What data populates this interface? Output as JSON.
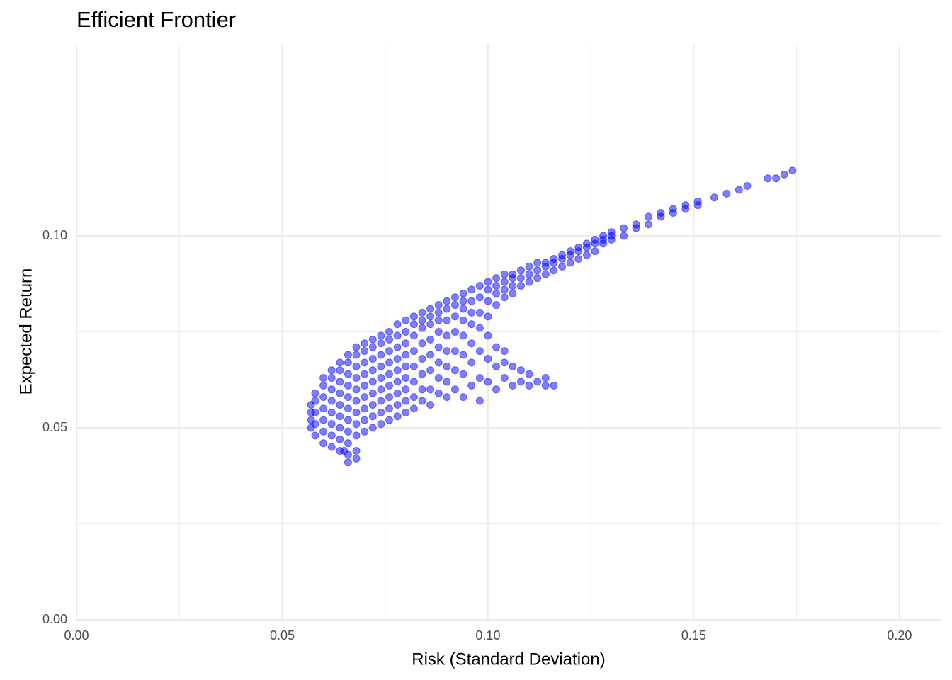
{
  "chart_data": {
    "type": "scatter",
    "title": "Efficient Frontier",
    "x_label": "Risk (Standard Deviation)",
    "y_label": "Expected Return",
    "color": "blue",
    "grid": true,
    "xlim": [
      0,
      0.21
    ],
    "ylim": [
      0,
      0.15
    ],
    "xticks": [
      {
        "value": 0,
        "label": "0.00"
      },
      {
        "value": 0.05,
        "label": "0.05"
      },
      {
        "value": 0.1,
        "label": "0.10"
      },
      {
        "value": 0.15,
        "label": "0.15"
      },
      {
        "value": 0.2,
        "label": "0.20"
      }
    ],
    "yticks": [
      {
        "value": 0,
        "label": "0.00"
      },
      {
        "value": 0.05,
        "label": "0.05"
      },
      {
        "value": 0.1,
        "label": "0.10"
      }
    ],
    "xminor": [
      0.025,
      0.075,
      0.125,
      0.175
    ],
    "yminor": [
      0.025,
      0.075,
      0.125
    ],
    "x": [
      0.057,
      0.057,
      0.057,
      0.057,
      0.058,
      0.058,
      0.058,
      0.058,
      0.058,
      0.06,
      0.06,
      0.06,
      0.06,
      0.06,
      0.06,
      0.06,
      0.062,
      0.062,
      0.062,
      0.062,
      0.062,
      0.062,
      0.062,
      0.062,
      0.064,
      0.064,
      0.064,
      0.064,
      0.064,
      0.064,
      0.064,
      0.064,
      0.064,
      0.066,
      0.066,
      0.066,
      0.066,
      0.066,
      0.066,
      0.066,
      0.066,
      0.066,
      0.066,
      0.068,
      0.068,
      0.068,
      0.068,
      0.068,
      0.068,
      0.068,
      0.068,
      0.068,
      0.068,
      0.07,
      0.07,
      0.07,
      0.07,
      0.07,
      0.07,
      0.07,
      0.07,
      0.07,
      0.072,
      0.072,
      0.072,
      0.072,
      0.072,
      0.072,
      0.072,
      0.072,
      0.072,
      0.074,
      0.074,
      0.074,
      0.074,
      0.074,
      0.074,
      0.074,
      0.074,
      0.074,
      0.076,
      0.076,
      0.076,
      0.076,
      0.076,
      0.076,
      0.076,
      0.076,
      0.076,
      0.078,
      0.078,
      0.078,
      0.078,
      0.078,
      0.078,
      0.078,
      0.078,
      0.078,
      0.08,
      0.08,
      0.08,
      0.08,
      0.08,
      0.08,
      0.08,
      0.08,
      0.08,
      0.082,
      0.082,
      0.082,
      0.082,
      0.082,
      0.082,
      0.082,
      0.082,
      0.084,
      0.084,
      0.084,
      0.084,
      0.084,
      0.084,
      0.084,
      0.084,
      0.086,
      0.086,
      0.086,
      0.086,
      0.086,
      0.086,
      0.086,
      0.086,
      0.088,
      0.088,
      0.088,
      0.088,
      0.088,
      0.088,
      0.088,
      0.088,
      0.09,
      0.09,
      0.09,
      0.09,
      0.09,
      0.09,
      0.09,
      0.09,
      0.092,
      0.092,
      0.092,
      0.092,
      0.092,
      0.092,
      0.092,
      0.094,
      0.094,
      0.094,
      0.094,
      0.094,
      0.094,
      0.094,
      0.094,
      0.096,
      0.096,
      0.096,
      0.096,
      0.096,
      0.096,
      0.096,
      0.098,
      0.098,
      0.098,
      0.098,
      0.098,
      0.098,
      0.098,
      0.1,
      0.1,
      0.1,
      0.1,
      0.1,
      0.1,
      0.1,
      0.102,
      0.102,
      0.102,
      0.102,
      0.102,
      0.102,
      0.102,
      0.104,
      0.104,
      0.104,
      0.104,
      0.104,
      0.104,
      0.104,
      0.106,
      0.106,
      0.106,
      0.106,
      0.106,
      0.106,
      0.108,
      0.108,
      0.108,
      0.108,
      0.108,
      0.11,
      0.11,
      0.11,
      0.11,
      0.11,
      0.112,
      0.112,
      0.112,
      0.112,
      0.114,
      0.114,
      0.114,
      0.114,
      0.114,
      0.116,
      0.116,
      0.116,
      0.116,
      0.118,
      0.118,
      0.118,
      0.12,
      0.12,
      0.12,
      0.122,
      0.122,
      0.122,
      0.124,
      0.124,
      0.124,
      0.126,
      0.126,
      0.126,
      0.128,
      0.128,
      0.128,
      0.13,
      0.13,
      0.13,
      0.133,
      0.133,
      0.136,
      0.136,
      0.139,
      0.139,
      0.142,
      0.142,
      0.145,
      0.145,
      0.148,
      0.148,
      0.151,
      0.151,
      0.155,
      0.158,
      0.161,
      0.163,
      0.168,
      0.17,
      0.172,
      0.174,
      0.066,
      0.068,
      0.065
    ],
    "values": [
      0.05,
      0.052,
      0.054,
      0.056,
      0.048,
      0.051,
      0.054,
      0.057,
      0.059,
      0.046,
      0.049,
      0.052,
      0.055,
      0.058,
      0.061,
      0.063,
      0.045,
      0.048,
      0.051,
      0.054,
      0.057,
      0.06,
      0.063,
      0.065,
      0.044,
      0.047,
      0.05,
      0.053,
      0.056,
      0.059,
      0.062,
      0.065,
      0.067,
      0.043,
      0.046,
      0.049,
      0.052,
      0.055,
      0.058,
      0.061,
      0.064,
      0.067,
      0.069,
      0.044,
      0.048,
      0.051,
      0.054,
      0.057,
      0.06,
      0.063,
      0.066,
      0.069,
      0.071,
      0.049,
      0.052,
      0.055,
      0.058,
      0.061,
      0.064,
      0.067,
      0.07,
      0.072,
      0.05,
      0.053,
      0.056,
      0.059,
      0.062,
      0.065,
      0.068,
      0.071,
      0.073,
      0.051,
      0.054,
      0.057,
      0.06,
      0.063,
      0.066,
      0.069,
      0.072,
      0.074,
      0.052,
      0.055,
      0.058,
      0.061,
      0.064,
      0.067,
      0.07,
      0.073,
      0.075,
      0.053,
      0.056,
      0.059,
      0.062,
      0.065,
      0.068,
      0.071,
      0.074,
      0.077,
      0.054,
      0.057,
      0.06,
      0.063,
      0.066,
      0.069,
      0.072,
      0.075,
      0.078,
      0.055,
      0.058,
      0.062,
      0.066,
      0.07,
      0.074,
      0.077,
      0.079,
      0.057,
      0.06,
      0.064,
      0.068,
      0.072,
      0.076,
      0.078,
      0.08,
      0.056,
      0.06,
      0.065,
      0.069,
      0.073,
      0.077,
      0.079,
      0.081,
      0.059,
      0.063,
      0.067,
      0.071,
      0.075,
      0.078,
      0.08,
      0.082,
      0.058,
      0.062,
      0.066,
      0.07,
      0.074,
      0.078,
      0.081,
      0.083,
      0.06,
      0.065,
      0.07,
      0.075,
      0.079,
      0.082,
      0.084,
      0.058,
      0.064,
      0.069,
      0.074,
      0.078,
      0.081,
      0.083,
      0.085,
      0.061,
      0.067,
      0.072,
      0.077,
      0.08,
      0.083,
      0.086,
      0.057,
      0.063,
      0.07,
      0.076,
      0.08,
      0.084,
      0.087,
      0.062,
      0.068,
      0.074,
      0.079,
      0.083,
      0.086,
      0.088,
      0.06,
      0.066,
      0.071,
      0.082,
      0.085,
      0.087,
      0.089,
      0.063,
      0.067,
      0.07,
      0.084,
      0.086,
      0.088,
      0.09,
      0.061,
      0.066,
      0.085,
      0.087,
      0.089,
      0.09,
      0.062,
      0.065,
      0.087,
      0.089,
      0.091,
      0.061,
      0.064,
      0.088,
      0.09,
      0.092,
      0.062,
      0.089,
      0.091,
      0.093,
      0.063,
      0.061,
      0.09,
      0.092,
      0.093,
      0.061,
      0.091,
      0.093,
      0.094,
      0.092,
      0.094,
      0.095,
      0.093,
      0.095,
      0.096,
      0.094,
      0.096,
      0.097,
      0.095,
      0.097,
      0.098,
      0.096,
      0.098,
      0.099,
      0.098,
      0.099,
      0.1,
      0.099,
      0.1,
      0.101,
      0.1,
      0.102,
      0.102,
      0.103,
      0.103,
      0.105,
      0.105,
      0.106,
      0.106,
      0.107,
      0.107,
      0.108,
      0.108,
      0.109,
      0.11,
      0.111,
      0.112,
      0.113,
      0.115,
      0.115,
      0.116,
      0.117,
      0.041,
      0.042,
      0.044
    ]
  }
}
